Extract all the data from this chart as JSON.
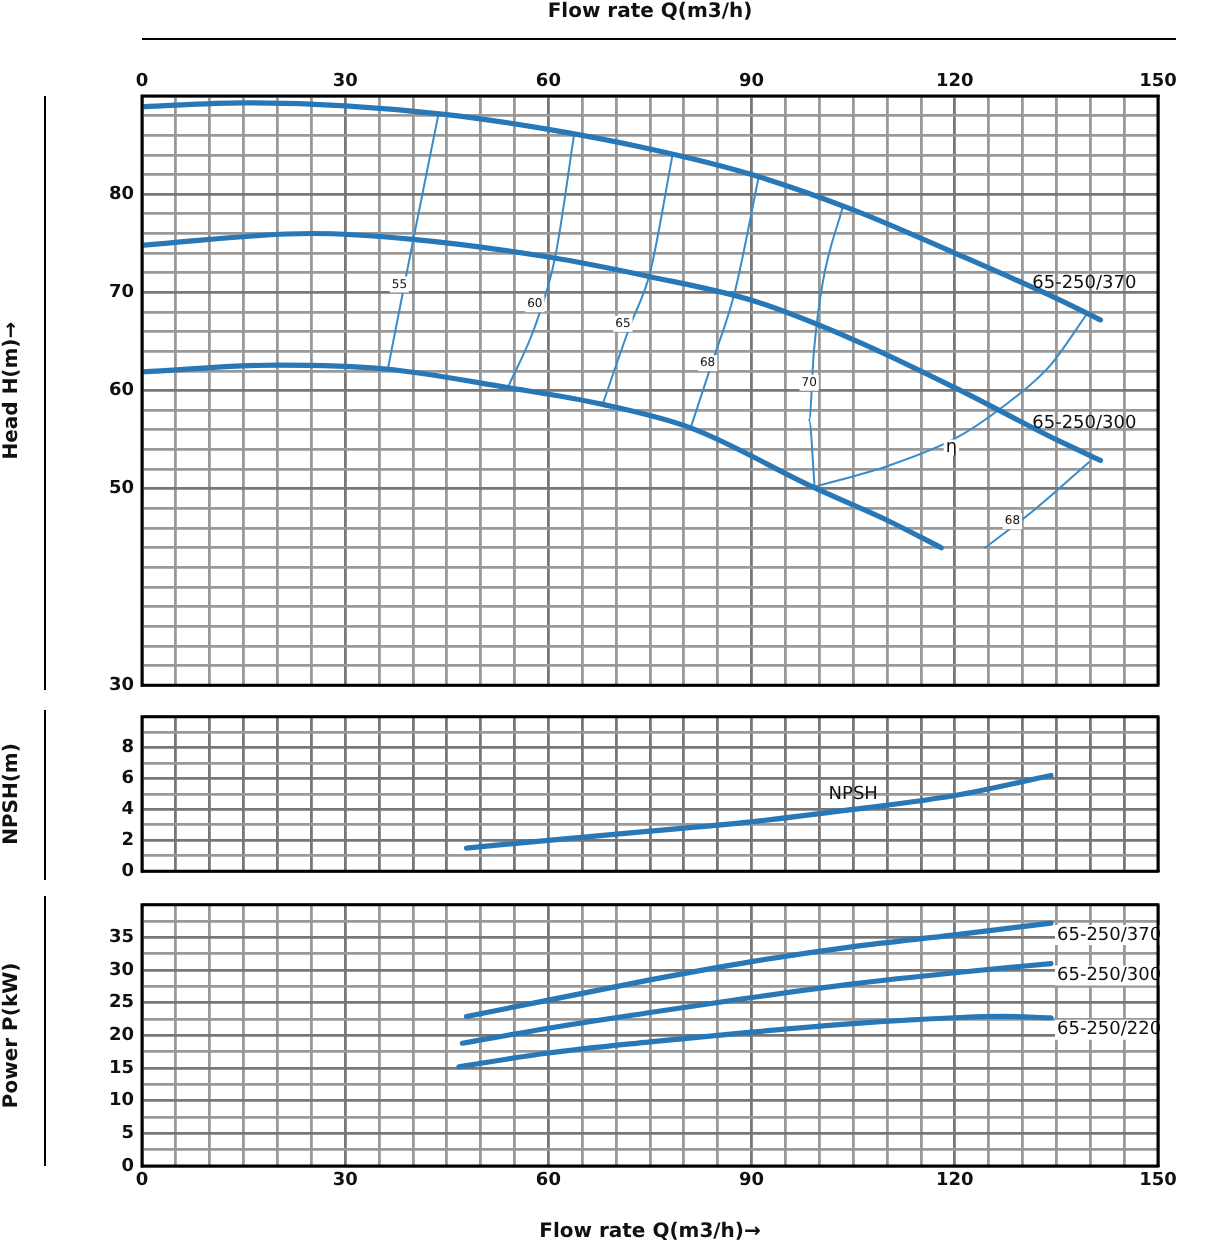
{
  "chart_data": [
    {
      "type": "line",
      "xlabel": "Flow rate Q(m3/h)",
      "ylabel": "Head H(m)→",
      "xlim": [
        0,
        150
      ],
      "xticks": [
        0,
        {
          "value": 5,
          "label": null
        },
        {
          "value": 10,
          "label": null
        },
        {
          "value": 15,
          "label": null
        },
        {
          "value": 20,
          "label": null
        },
        {
          "value": 25,
          "label": null
        },
        30,
        {
          "value": 35,
          "label": null
        },
        {
          "value": 40,
          "label": null
        },
        {
          "value": 45,
          "label": null
        },
        {
          "value": 50,
          "label": null
        },
        {
          "value": 55,
          "label": null
        },
        60,
        {
          "value": 65,
          "label": null
        },
        {
          "value": 70,
          "label": null
        },
        {
          "value": 75,
          "label": null
        },
        {
          "value": 80,
          "label": null
        },
        {
          "value": 85,
          "label": null
        },
        90,
        {
          "value": 95,
          "label": null
        },
        {
          "value": 100,
          "label": null
        },
        {
          "value": 105,
          "label": null
        },
        {
          "value": 110,
          "label": null
        },
        {
          "value": 115,
          "label": null
        },
        120,
        {
          "value": 125,
          "label": null
        },
        {
          "value": 130,
          "label": null
        },
        {
          "value": 135,
          "label": null
        },
        {
          "value": 140,
          "label": null
        },
        {
          "value": 145,
          "label": null
        },
        150
      ],
      "ylim": [
        30,
        90
      ],
      "yticks": [
        30,
        {
          "value": 32,
          "label": null
        },
        {
          "value": 34,
          "label": null
        },
        {
          "value": 36,
          "label": null
        },
        {
          "value": 38,
          "label": null
        },
        {
          "value": 40,
          "label": null
        },
        {
          "value": 42,
          "label": null
        },
        {
          "value": 44,
          "label": null
        },
        {
          "value": 46,
          "label": null
        },
        {
          "value": 48,
          "label": null
        },
        50,
        {
          "value": 52,
          "label": null
        },
        {
          "value": 54,
          "label": null
        },
        {
          "value": 56,
          "label": null
        },
        {
          "value": 58,
          "label": null
        },
        60,
        {
          "value": 62,
          "label": null
        },
        {
          "value": 64,
          "label": null
        },
        {
          "value": 66,
          "label": null
        },
        {
          "value": 68,
          "label": null
        },
        70,
        {
          "value": 72,
          "label": null
        },
        {
          "value": 74,
          "label": null
        },
        {
          "value": 76,
          "label": null
        },
        {
          "value": 78,
          "label": null
        },
        80,
        {
          "value": 82,
          "label": null
        },
        {
          "value": 84,
          "label": null
        },
        {
          "value": 86,
          "label": null
        },
        {
          "value": 88,
          "label": null
        },
        {
          "value": 90,
          "label": null
        }
      ],
      "grid": true,
      "legend": false,
      "marker": "none",
      "line_style": "solid",
      "series": [
        {
          "name": "65-250/370",
          "color": "#2878b8",
          "x": [
            0,
            15,
            30,
            45,
            60,
            75,
            90,
            105,
            120,
            135,
            141.5
          ],
          "values": [
            88.9,
            89.3,
            89.0,
            88.1,
            86.6,
            84.6,
            82.0,
            78.4,
            74.0,
            69.4,
            67.2
          ]
        },
        {
          "name": "65-250/300",
          "color": "#2878b8",
          "x": [
            0,
            25,
            40,
            60,
            75,
            90,
            105,
            120,
            135,
            141.5
          ],
          "values": [
            74.8,
            76.0,
            75.4,
            73.6,
            71.6,
            69.2,
            65.2,
            60.3,
            55.0,
            52.9
          ]
        },
        {
          "color": "#2878b8",
          "x": [
            0,
            20,
            36,
            54,
            68,
            81,
            99,
            110,
            118
          ],
          "values": [
            61.9,
            62.6,
            62.2,
            60.3,
            58.6,
            56.2,
            50.2,
            46.8,
            44.0
          ]
        },
        {
          "color": "#3a8cc8",
          "x": [
            36.3,
            40,
            43.7
          ],
          "values": [
            62.2,
            75.2,
            87.9
          ]
        },
        {
          "color": "#3a8cc8",
          "x": [
            54,
            58,
            61,
            63.8
          ],
          "values": [
            60.3,
            66.5,
            73.6,
            86.1
          ]
        },
        {
          "color": "#3a8cc8",
          "x": [
            68,
            72,
            75,
            78.3
          ],
          "values": [
            58.6,
            66.5,
            72.0,
            83.9
          ]
        },
        {
          "color": "#3a8cc8",
          "x": [
            81,
            84,
            87.5,
            91.0
          ],
          "values": [
            56.2,
            62.5,
            70.0,
            81.6
          ]
        },
        {
          "color": "#3a8cc8",
          "x": [
            99.3,
            98.5,
            99.2,
            100.5,
            103.5
          ],
          "values": [
            50.2,
            57.0,
            64.0,
            71.0,
            78.8
          ]
        },
        {
          "color": "#3a8cc8",
          "x": [
            99.3,
            110,
            120,
            126.8,
            134,
            139.5
          ],
          "values": [
            50.2,
            52.3,
            55.1,
            58.2,
            62.5,
            67.8
          ]
        },
        {
          "color": "#3a8cc8",
          "x": [
            139.8,
            132,
            124.5
          ],
          "values": [
            52.7,
            48.0,
            44.0
          ]
        }
      ],
      "annotations": [
        {
          "text": "55",
          "x": 38,
          "y": 70.8
        },
        {
          "text": "60",
          "x": 58,
          "y": 68.8
        },
        {
          "text": "65",
          "x": 71,
          "y": 66.8
        },
        {
          "text": "68",
          "x": 83.5,
          "y": 62.8
        },
        {
          "text": "70",
          "x": 98.5,
          "y": 60.8
        },
        {
          "text": "η",
          "x": 119.5,
          "y": 54.2
        },
        {
          "text": "68",
          "x": 128.5,
          "y": 46.7
        }
      ]
    },
    {
      "type": "line",
      "ylabel": "NPSH(m)",
      "tick_labels": "y",
      "xlim": [
        0,
        150
      ],
      "xticks": [
        0,
        5,
        10,
        15,
        20,
        25,
        30,
        35,
        40,
        45,
        50,
        55,
        60,
        65,
        70,
        75,
        80,
        85,
        90,
        95,
        100,
        105,
        110,
        115,
        120,
        125,
        130,
        135,
        140,
        145,
        150
      ],
      "ylim": [
        0,
        10
      ],
      "yticks": [
        0,
        {
          "value": 1,
          "label": null
        },
        2,
        {
          "value": 3,
          "label": null
        },
        4,
        {
          "value": 5,
          "label": null
        },
        6,
        {
          "value": 7,
          "label": null
        },
        8,
        {
          "value": 9,
          "label": null
        },
        {
          "value": 10,
          "label": null
        }
      ],
      "grid": true,
      "legend": false,
      "marker": "none",
      "line_style": "solid",
      "series": [
        {
          "name": "NPSH",
          "color": "#2878b8",
          "x": [
            47.9,
            60,
            75,
            90,
            105,
            120,
            134.2
          ],
          "values": [
            1.5,
            2.0,
            2.6,
            3.2,
            4.0,
            4.9,
            6.2
          ]
        }
      ]
    },
    {
      "type": "line",
      "xlabel": "Flow rate Q(m3/h)→",
      "ylabel": "Power P(kW)",
      "xlim": [
        0,
        150
      ],
      "xticks": [
        0,
        {
          "value": 5,
          "label": null
        },
        {
          "value": 10,
          "label": null
        },
        {
          "value": 15,
          "label": null
        },
        {
          "value": 20,
          "label": null
        },
        {
          "value": 25,
          "label": null
        },
        30,
        {
          "value": 35,
          "label": null
        },
        {
          "value": 40,
          "label": null
        },
        {
          "value": 45,
          "label": null
        },
        {
          "value": 50,
          "label": null
        },
        {
          "value": 55,
          "label": null
        },
        60,
        {
          "value": 65,
          "label": null
        },
        {
          "value": 70,
          "label": null
        },
        {
          "value": 75,
          "label": null
        },
        {
          "value": 80,
          "label": null
        },
        {
          "value": 85,
          "label": null
        },
        90,
        {
          "value": 95,
          "label": null
        },
        {
          "value": 100,
          "label": null
        },
        {
          "value": 105,
          "label": null
        },
        {
          "value": 110,
          "label": null
        },
        {
          "value": 115,
          "label": null
        },
        120,
        {
          "value": 125,
          "label": null
        },
        {
          "value": 130,
          "label": null
        },
        {
          "value": 135,
          "label": null
        },
        {
          "value": 140,
          "label": null
        },
        {
          "value": 145,
          "label": null
        },
        150
      ],
      "ylim": [
        0,
        40
      ],
      "yticks": [
        0,
        {
          "value": 2.5,
          "label": null
        },
        5,
        {
          "value": 7.5,
          "label": null
        },
        10,
        {
          "value": 12.5,
          "label": null
        },
        15,
        {
          "value": 17.5,
          "label": null
        },
        20,
        {
          "value": 22.5,
          "label": null
        },
        25,
        {
          "value": 27.5,
          "label": null
        },
        30,
        {
          "value": 32.5,
          "label": null
        },
        35,
        {
          "value": 37.5,
          "label": null
        },
        {
          "value": 40,
          "label": null
        }
      ],
      "grid": true,
      "legend": false,
      "marker": "none",
      "line_style": "solid",
      "series": [
        {
          "name": "65-250/370",
          "color": "#2878b8",
          "x": [
            47.9,
            60,
            75,
            90,
            105,
            120,
            134.2
          ],
          "values": [
            22.9,
            25.4,
            28.5,
            31.3,
            33.6,
            35.4,
            37.2
          ]
        },
        {
          "name": "65-250/300",
          "color": "#2878b8",
          "x": [
            47.3,
            60,
            75,
            90,
            105,
            120,
            134.2
          ],
          "values": [
            18.8,
            21.1,
            23.5,
            25.8,
            27.9,
            29.6,
            31.0
          ]
        },
        {
          "name": "65-250/220",
          "color": "#2878b8",
          "x": [
            46.8,
            60,
            75,
            90,
            105,
            120,
            127,
            134.2
          ],
          "values": [
            15.2,
            17.3,
            19.0,
            20.5,
            21.8,
            22.7,
            22.9,
            22.7
          ]
        }
      ]
    }
  ]
}
